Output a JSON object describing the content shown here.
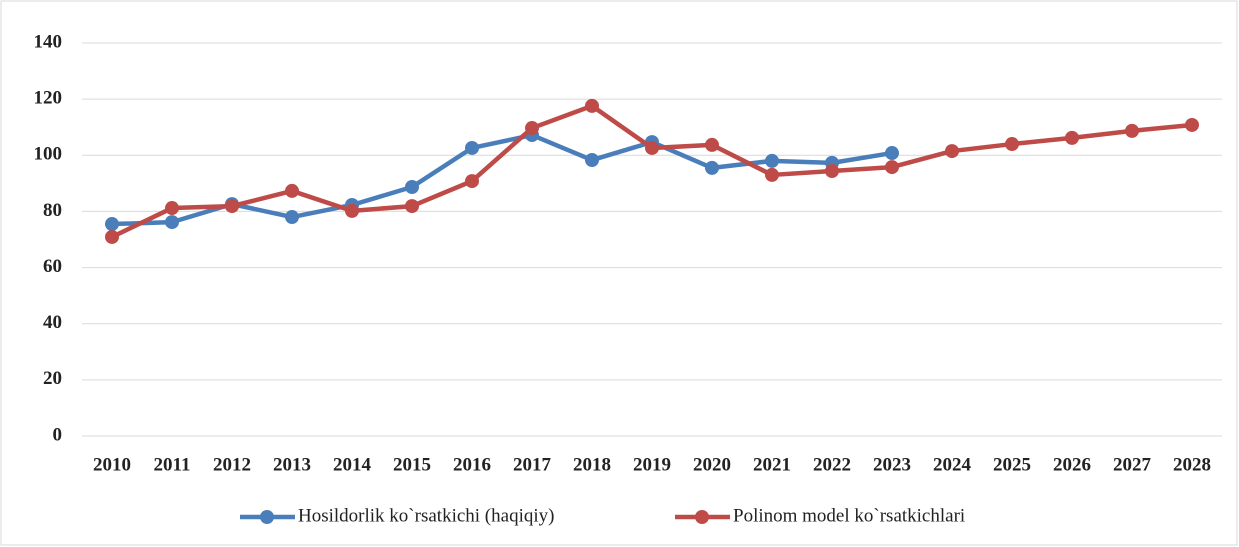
{
  "chart_data": {
    "type": "line",
    "categories": [
      "2010",
      "2011",
      "2012",
      "2013",
      "2014",
      "2015",
      "2016",
      "2017",
      "2018",
      "2019",
      "2020",
      "2021",
      "2022",
      "2023",
      "2024",
      "2025",
      "2026",
      "2027",
      "2028"
    ],
    "series": [
      {
        "name": "Hosildorlik ko`rsatkichi (haqiqiy)",
        "color": "#4a7ebb",
        "values": [
          75.5,
          76.2,
          82.6,
          78,
          82.3,
          88.7,
          102.6,
          107.2,
          98.3,
          104.7,
          95.5,
          98,
          97.3,
          100.8,
          null,
          null,
          null,
          null,
          null
        ]
      },
      {
        "name": "Polinom model ko`rsatkichlari",
        "color": "#be4b48",
        "values": [
          70.9,
          81.2,
          81.9,
          87.3,
          80.2,
          81.9,
          90.8,
          109.7,
          117.6,
          102.6,
          103.7,
          93,
          94.4,
          95.8,
          101.5,
          104,
          106.2,
          108.7,
          110.8
        ]
      }
    ],
    "ylim": [
      0,
      140
    ],
    "yticks": [
      0,
      20,
      40,
      60,
      80,
      100,
      120,
      140
    ],
    "grid": true,
    "legend": "bottom"
  }
}
